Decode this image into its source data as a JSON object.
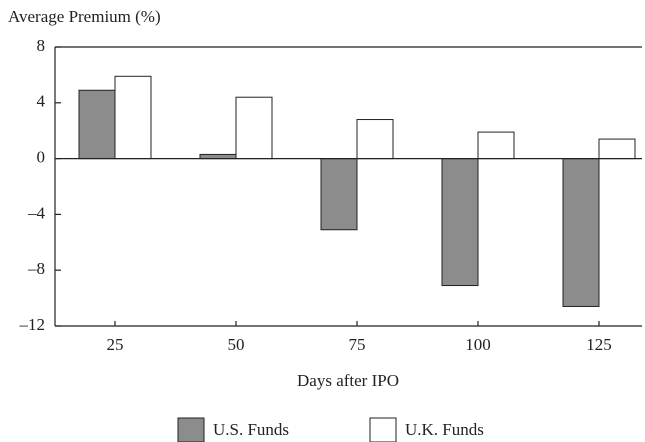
{
  "chart_data": {
    "type": "bar",
    "ylabel": "Average Premium (%)",
    "xlabel": "Days after IPO",
    "categories": [
      "25",
      "50",
      "75",
      "100",
      "125"
    ],
    "series": [
      {
        "name": "U.S. Funds",
        "color": "#8c8c8c",
        "values": [
          4.9,
          0.3,
          -5.1,
          -9.1,
          -10.6
        ]
      },
      {
        "name": "U.K. Funds",
        "color": "#ffffff",
        "values": [
          5.9,
          4.4,
          2.8,
          1.9,
          1.4
        ]
      }
    ],
    "ylim": [
      -12,
      8
    ],
    "yticks": [
      {
        "value": -12,
        "label": "–12"
      },
      {
        "value": -8,
        "label": "–8"
      },
      {
        "value": -4,
        "label": "–4"
      },
      0,
      4,
      8
    ],
    "legend": "bottom"
  }
}
